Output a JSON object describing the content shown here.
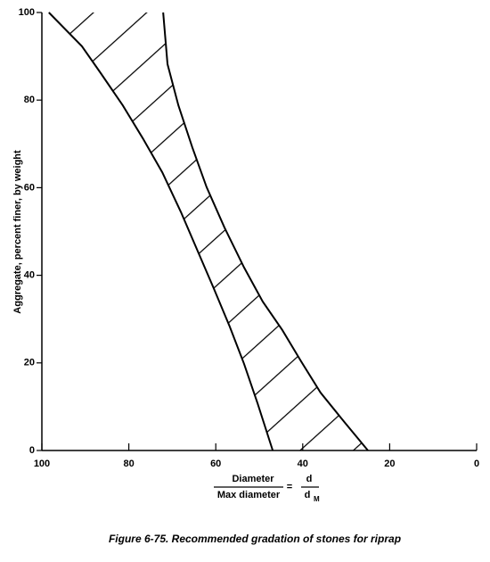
{
  "chart_data": {
    "type": "band",
    "y_label": "Aggregate, percent finer, by weight",
    "x_label": {
      "numerator": "Diameter",
      "denominator": "Max diameter",
      "equals": "=",
      "symbol_numerator": "d",
      "symbol_denominator": "d",
      "symbol_subscript": "M"
    },
    "caption": "Figure 6-75.  Recommended gradation of stones for riprap",
    "xlim": [
      100,
      0
    ],
    "ylim": [
      0,
      100
    ],
    "xticks": [
      100,
      80,
      60,
      40,
      20,
      0
    ],
    "yticks": [
      0,
      20,
      40,
      60,
      80,
      100
    ],
    "color": "#000000",
    "series": [
      {
        "x": [
          98.4,
          90.8,
          86.5,
          81.4,
          76.8,
          72.3,
          68,
          64.1,
          60.5,
          56.8,
          53.5,
          50.4,
          46.9
        ],
        "values": [
          100,
          92.3,
          86.2,
          78.8,
          71.3,
          63.5,
          54.4,
          45.4,
          37.1,
          28.3,
          19.8,
          10.8,
          0
        ]
      },
      {
        "x": [
          72.1,
          71.1,
          68.6,
          65.4,
          62.1,
          58,
          53.5,
          49.2,
          44.7,
          40.4,
          35.9,
          30.1,
          25
        ],
        "values": [
          100,
          88.2,
          78.8,
          69.2,
          60.1,
          50.9,
          41.8,
          34,
          27.5,
          20.4,
          13.2,
          6.1,
          0
        ]
      }
    ]
  }
}
